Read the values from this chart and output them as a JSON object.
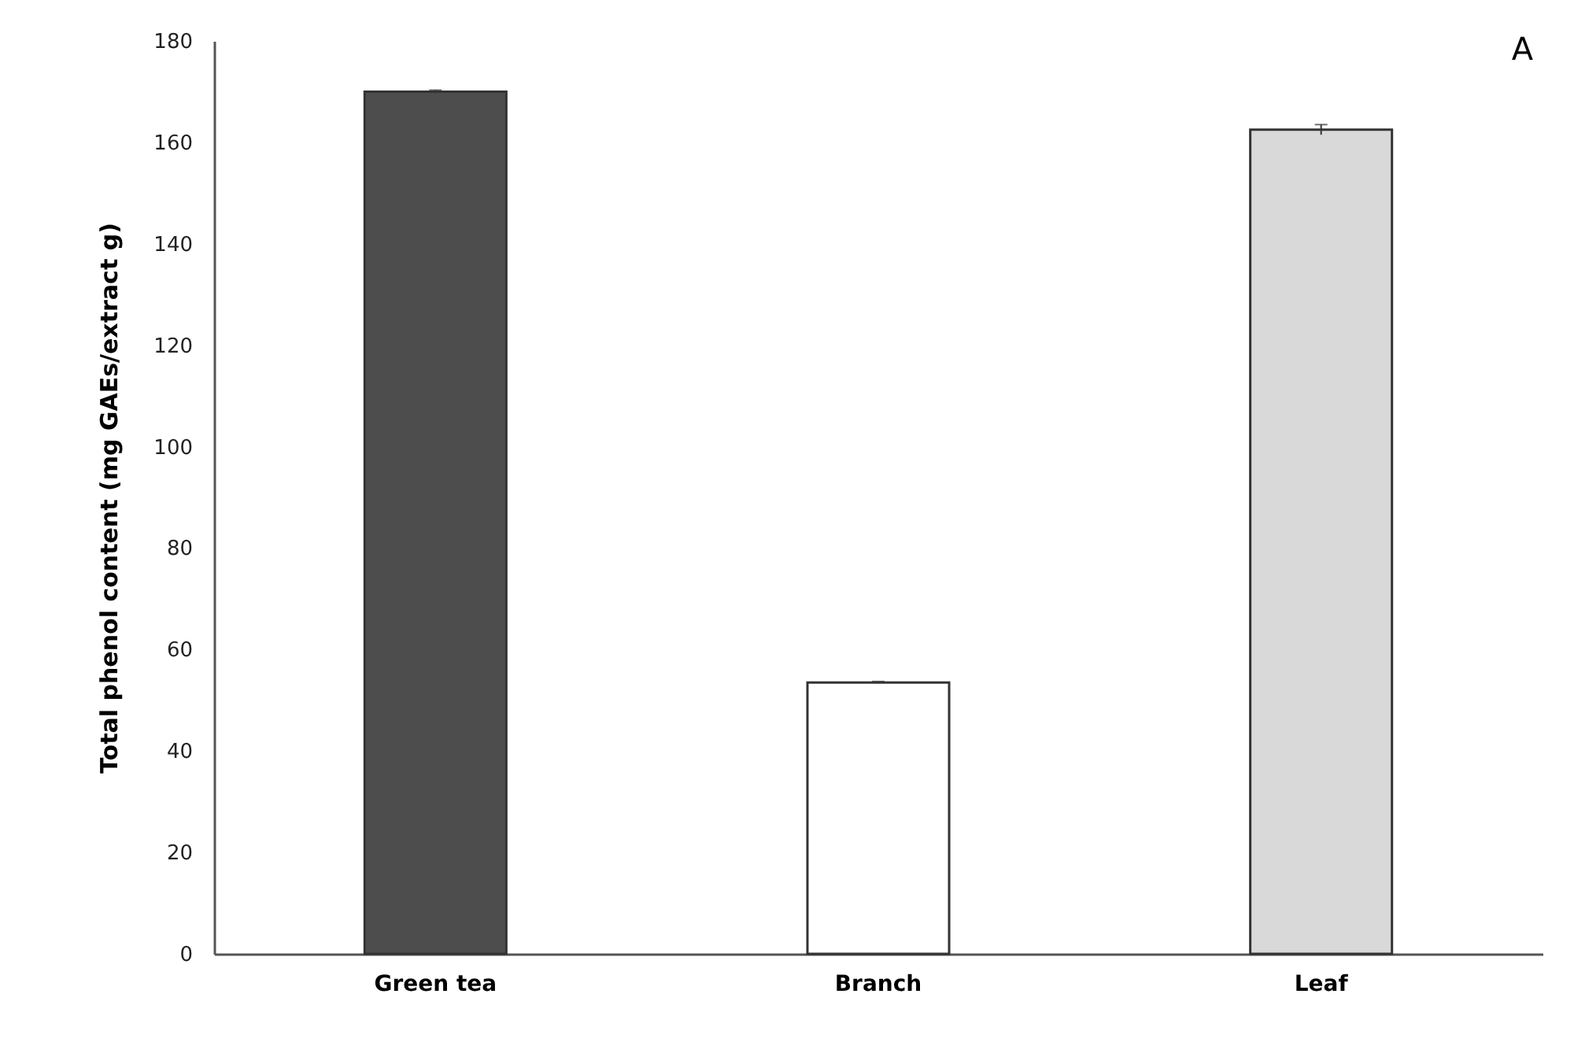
{
  "chart_data": {
    "type": "bar",
    "ylabel": "Total phenol content (mg GAEs/extract g)",
    "categories": [
      "Green tea",
      "Branch",
      "Leaf"
    ],
    "values": [
      170,
      53.5,
      162.5
    ],
    "colors": [
      "#4d4d4d",
      "#ffffff",
      "#d9d9d9"
    ],
    "errors": [
      0.3,
      0.2,
      1
    ],
    "ylim": [
      0,
      180
    ],
    "yticks": [
      0,
      20,
      40,
      60,
      80,
      100,
      120,
      140,
      160,
      180
    ],
    "grid": false,
    "annotations": [
      "A"
    ]
  }
}
